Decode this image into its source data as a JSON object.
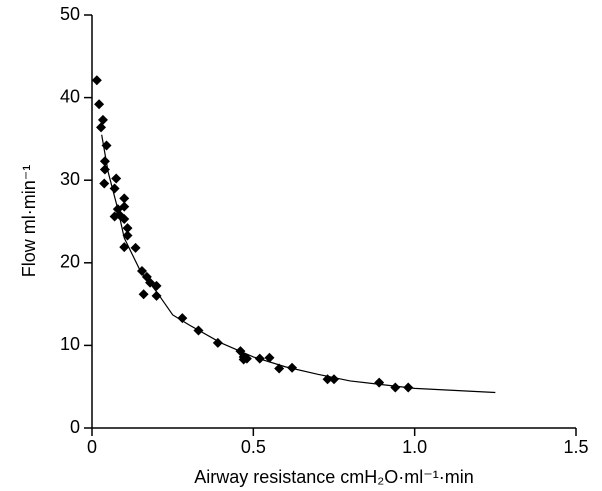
{
  "chart_data": {
    "type": "scatter",
    "xlabel": "Airway resistance  cmH₂O·ml⁻¹·min",
    "ylabel": "Flow  ml·min⁻¹",
    "xlim": [
      0,
      1.5
    ],
    "ylim": [
      0,
      50
    ],
    "xticks": [
      0,
      0.5,
      {
        "value": 1,
        "label": "1.0"
      },
      1.5
    ],
    "yticks": [
      0,
      10,
      20,
      30,
      40,
      50
    ],
    "series": [
      {
        "color": "#000000",
        "marker": "diamond",
        "x": [
          0.015,
          0.022,
          0.034,
          0.028,
          0.045,
          0.04,
          0.04,
          0.038,
          0.075,
          0.07,
          0.1,
          0.1,
          0.08,
          0.07,
          0.085,
          0.1,
          0.11,
          0.11,
          0.1,
          0.135,
          0.155,
          0.17,
          0.18,
          0.16,
          0.2,
          0.2,
          0.28,
          0.33,
          0.39,
          0.46,
          0.47,
          0.47,
          0.48,
          0.52,
          0.55,
          0.58,
          0.62,
          0.73,
          0.75,
          0.89,
          0.94,
          0.98
        ],
        "values": [
          42.1,
          39.2,
          37.3,
          36.4,
          34.2,
          32.3,
          31.3,
          29.6,
          30.2,
          29.0,
          26.8,
          27.8,
          26.5,
          25.6,
          25.8,
          25.3,
          24.2,
          23.3,
          21.9,
          21.8,
          19.0,
          18.3,
          17.6,
          16.2,
          17.2,
          16.0,
          13.3,
          11.8,
          10.3,
          9.3,
          8.6,
          8.3,
          8.4,
          8.4,
          8.5,
          7.2,
          7.3,
          5.9,
          5.9,
          5.5,
          4.9,
          4.9
        ]
      },
      {
        "color": "#000000",
        "marker": "line",
        "x": [
          0.03,
          0.05,
          0.08,
          0.1,
          0.15,
          0.2,
          0.25,
          0.3,
          0.4,
          0.5,
          0.6,
          0.7,
          0.8,
          1.0,
          1.25
        ],
        "values": [
          35.5,
          31,
          26.5,
          23,
          19,
          16.5,
          13.7,
          12.5,
          10.3,
          8.6,
          7.4,
          6.5,
          5.7,
          4.8,
          4.3
        ]
      }
    ]
  }
}
